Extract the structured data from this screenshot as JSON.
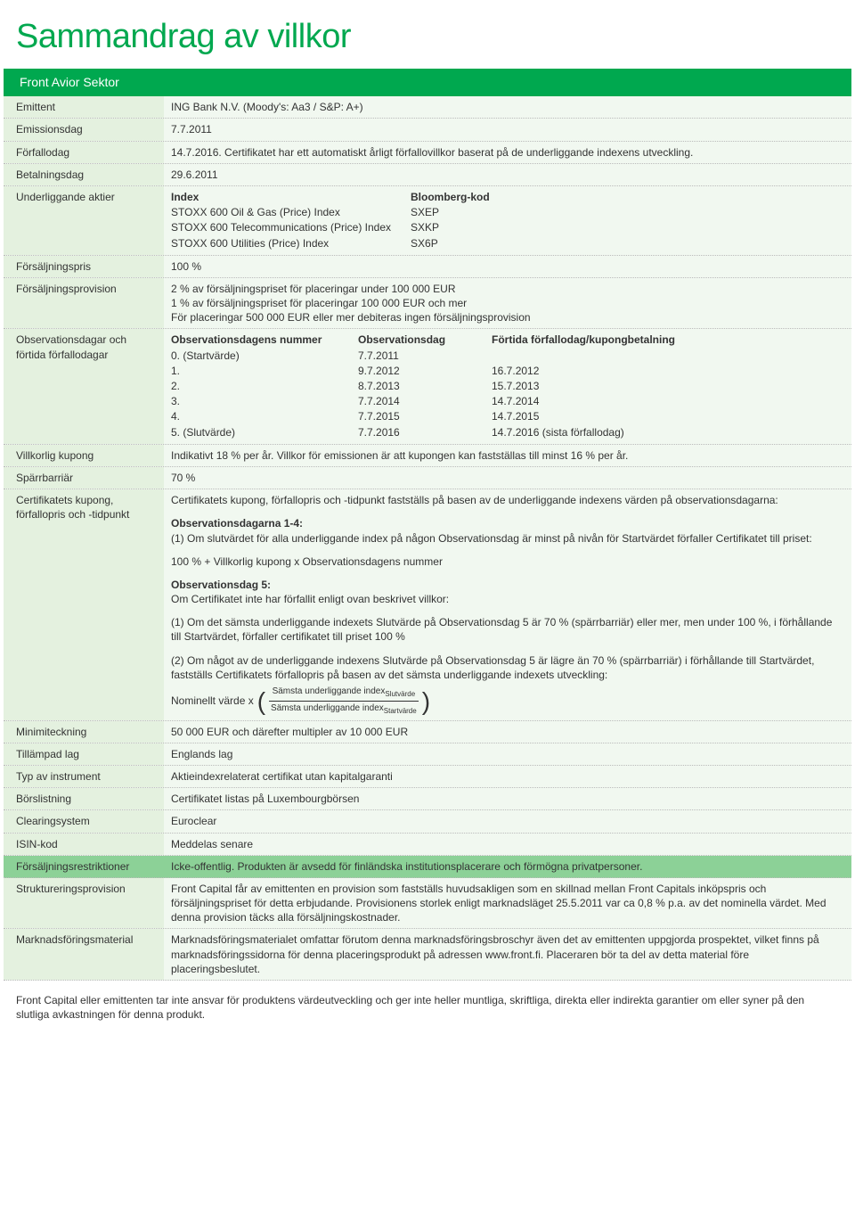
{
  "title": "Sammandrag av villkor",
  "headerBar": "Front Avior Sektor",
  "rows": {
    "emittent": {
      "label": "Emittent",
      "value": "ING Bank N.V. (Moody's: Aa3 / S&P: A+)"
    },
    "emissionsdag": {
      "label": "Emissionsdag",
      "value": "7.7.2011"
    },
    "forfallodag": {
      "label": "Förfallodag",
      "value": "14.7.2016. Certifikatet har ett automatiskt årligt förfallovillkor baserat på de underliggande indexens utveckling."
    },
    "betalningsdag": {
      "label": "Betalningsdag",
      "value": "29.6.2011"
    },
    "underliggande": {
      "label": "Underliggande aktier",
      "header_index": "Index",
      "header_code": "Bloomberg-kod",
      "items": [
        {
          "name": "STOXX 600 Oil & Gas (Price) Index",
          "code": "SXEP"
        },
        {
          "name": "STOXX 600 Telecommunications (Price) Index",
          "code": "SXKP"
        },
        {
          "name": "STOXX 600 Utilities (Price) Index",
          "code": "SX6P"
        }
      ]
    },
    "forsaljningspris": {
      "label": "Försäljningspris",
      "value": "100 %"
    },
    "forsaljningsprovision": {
      "label": "Försäljningsprovision",
      "line1": "2 % av försäljningspriset för placeringar under 100 000 EUR",
      "line2": "1 % av försäljningspriset för placeringar 100 000 EUR och mer",
      "line3": "För placeringar 500 000 EUR eller mer debiteras ingen försäljningsprovision"
    },
    "observationsdagar": {
      "label": "Observationsdagar och förtida förfallodagar",
      "h0": "Observationsdagens nummer",
      "h1": "Observationsdag",
      "h2": "Förtida förfallodag/kupongbetalning",
      "rows": [
        {
          "c0": "0. (Startvärde)",
          "c1": "7.7.2011",
          "c2": ""
        },
        {
          "c0": "1.",
          "c1": "9.7.2012",
          "c2": "16.7.2012"
        },
        {
          "c0": "2.",
          "c1": "8.7.2013",
          "c2": "15.7.2013"
        },
        {
          "c0": "3.",
          "c1": "7.7.2014",
          "c2": "14.7.2014"
        },
        {
          "c0": "4.",
          "c1": "7.7.2015",
          "c2": "14.7.2015"
        },
        {
          "c0": "5. (Slutvärde)",
          "c1": "7.7.2016",
          "c2": "14.7.2016 (sista förfallodag)"
        }
      ]
    },
    "villkorlig": {
      "label": "Villkorlig kupong",
      "value": "Indikativt 18 % per år. Villkor för emissionen är att kupongen kan fastställas till minst 16 % per år."
    },
    "sparrbarriar": {
      "label": "Spärrbarriär",
      "value": "70 %"
    },
    "certkupong": {
      "label": "Certifikatets kupong, förfallopris och -tidpunkt",
      "intro": "Certifikatets kupong, förfallopris och -tidpunkt fastställs på basen av de underliggande indexens värden på observationsdagarna:",
      "obs14_header": "Observationsdagarna 1-4:",
      "obs14_text": "(1) Om slutvärdet för alla underliggande index på någon Observationsdag är minst på nivån för Startvärdet förfaller Certifikatet till priset:",
      "formula1": "100 % + Villkorlig kupong x Observationsdagens nummer",
      "obs5_header": "Observationsdag 5:",
      "obs5_text": "Om Certifikatet inte har förfallit enligt ovan beskrivet villkor:",
      "obs5_p1": "(1) Om det sämsta underliggande indexets Slutvärde på Observationsdag 5 är 70 % (spärrbarriär) eller mer, men under 100 %, i förhållande till Startvärdet, förfaller certifikatet till priset 100 %",
      "obs5_p2": "(2) Om något av de underliggande indexens Slutvärde på Observationsdag 5 är lägre än 70 % (spärrbarriär) i förhållande till Startvärdet, fastställs Certifikatets förfallopris på basen av det sämsta underliggande indexets utveckling:",
      "nominellt": "Nominellt värde x",
      "frac_num": "Sämsta underliggande index",
      "frac_num_sub": "Slutvärde",
      "frac_den": "Sämsta underliggande index",
      "frac_den_sub": "Startvärde"
    },
    "minimiteckning": {
      "label": "Minimiteckning",
      "value": "50 000 EUR och därefter multipler av 10 000 EUR"
    },
    "tillampadlag": {
      "label": "Tillämpad lag",
      "value": "Englands lag"
    },
    "typavinstrument": {
      "label": "Typ av instrument",
      "value": "Aktieindexrelaterat certifikat utan kapitalgaranti"
    },
    "borslistning": {
      "label": "Börslistning",
      "value": "Certifikatet listas på Luxembourgbörsen"
    },
    "clearing": {
      "label": "Clearingsystem",
      "value": "Euroclear"
    },
    "isin": {
      "label": "ISIN-kod",
      "value": "Meddelas senare"
    },
    "forsaljningsrestriktioner": {
      "label": "Försäljningsrestriktioner",
      "value": "Icke-offentlig. Produkten är avsedd för finländska institutionsplacerare och förmögna privatpersoner."
    },
    "struktureringsprovision": {
      "label": "Struktureringsprovision",
      "value": "Front Capital får av emittenten en provision som fastställs huvudsakligen som en skillnad mellan Front Capitals inköpspris och försäljningspriset för detta erbjudande. Provisionens storlek enligt marknadsläget 25.5.2011 var ca 0,8 % p.a. av det nominella värdet. Med denna provision täcks alla försäljningskostnader."
    },
    "marknadsforingsmaterial": {
      "label": "Marknadsföringsmaterial",
      "value": "Marknadsföringsmaterialet omfattar förutom denna marknadsföringsbroschyr även det av emittenten uppgjorda prospektet, vilket finns på marknadsföringssidorna för denna placeringsprodukt på adressen www.front.fi. Placeraren bör ta del av detta material före placeringsbeslutet."
    }
  },
  "footer": "Front Capital eller emittenten tar inte ansvar för produktens värdeutveckling och ger inte heller muntliga, skriftliga, direkta eller indirekta garantier om eller syner på den slutliga avkastningen för denna produkt."
}
